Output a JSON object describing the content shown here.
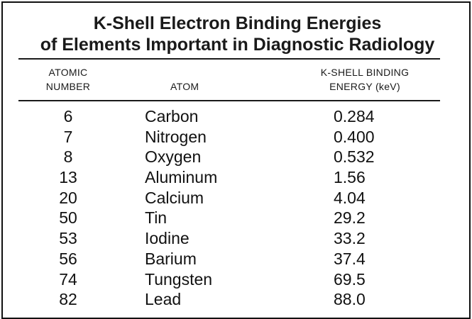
{
  "title": {
    "line1": "K-Shell Electron Binding Energies",
    "line2": "of Elements Important in Diagnostic Radiology"
  },
  "headers": {
    "atomic_number_line1": "ATOMIC",
    "atomic_number_line2": "NUMBER",
    "atom": "ATOM",
    "energy_line1": "K-SHELL BINDING",
    "energy_line2": "ENERGY (keV)"
  },
  "rows": [
    {
      "number": "6",
      "atom": "Carbon",
      "energy": "0.284"
    },
    {
      "number": "7",
      "atom": "Nitrogen",
      "energy": "0.400"
    },
    {
      "number": "8",
      "atom": "Oxygen",
      "energy": "0.532"
    },
    {
      "number": "13",
      "atom": "Aluminum",
      "energy": "1.56"
    },
    {
      "number": "20",
      "atom": "Calcium",
      "energy": "4.04"
    },
    {
      "number": "50",
      "atom": "Tin",
      "energy": "29.2"
    },
    {
      "number": "53",
      "atom": "Iodine",
      "energy": "33.2"
    },
    {
      "number": "56",
      "atom": "Barium",
      "energy": "37.4"
    },
    {
      "number": "74",
      "atom": "Tungsten",
      "energy": "69.5"
    },
    {
      "number": "82",
      "atom": "Lead",
      "energy": "88.0"
    }
  ]
}
